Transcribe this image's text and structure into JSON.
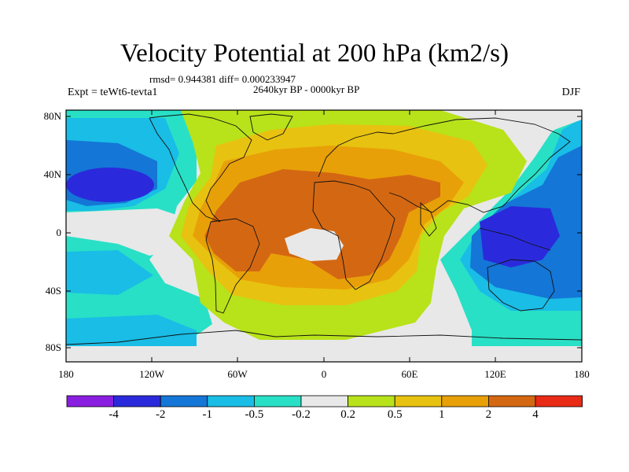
{
  "title": "Velocity Potential at 200 hPa (km2/s)",
  "stats_line": "rmsd= 0.944381 diff= 0.000233947",
  "period_line": "2640kyr BP - 0000kyr BP",
  "experiment": "Expt = teWt6-tevta1",
  "season": "DJF",
  "lat_labels": [
    "80N",
    "40N",
    "0",
    "40S",
    "80S"
  ],
  "lon_labels": [
    "180",
    "120W",
    "60W",
    "0",
    "60E",
    "120E",
    "180"
  ],
  "colorbar": {
    "tick_labels": [
      "-4",
      "-2",
      "-1",
      "-0.5",
      "-0.2",
      "0.2",
      "0.5",
      "1",
      "2",
      "4"
    ],
    "colors": [
      "#8a1ee0",
      "#2a2adc",
      "#1476d6",
      "#19bde6",
      "#28e0c6",
      "#e8e8e8",
      "#b8e21a",
      "#e8c210",
      "#e8a008",
      "#d46812",
      "#e82a16"
    ]
  },
  "field_colors": {
    "neutral": "#e8e8e8",
    "pos_02": "#b8e21a",
    "pos_05": "#e8c210",
    "pos_1": "#e8a008",
    "pos_2": "#d46812",
    "neg_02": "#28e0c6",
    "neg_05": "#19bde6",
    "neg_1": "#1476d6",
    "neg_2": "#2a2adc"
  }
}
